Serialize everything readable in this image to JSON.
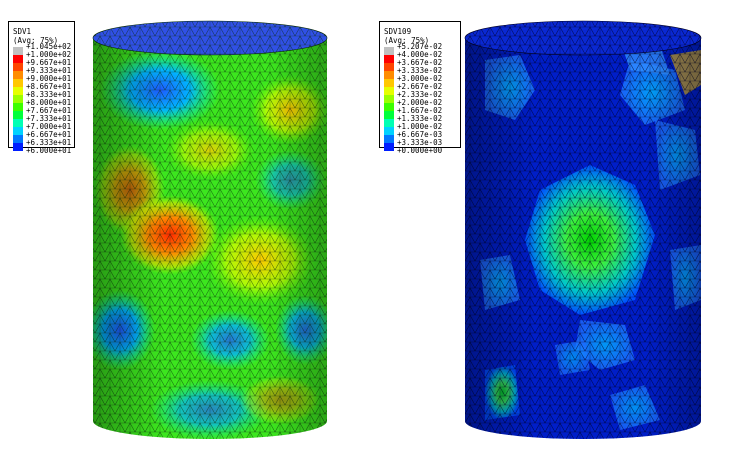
{
  "plots": [
    {
      "legend": {
        "title": "SDV1",
        "subtitle": "(Avg: 75%)",
        "values": [
          "+1.045e+02",
          "+1.000e+02",
          "+9.667e+01",
          "+9.333e+01",
          "+9.000e+01",
          "+8.667e+01",
          "+8.333e+01",
          "+8.000e+01",
          "+7.667e+01",
          "+7.333e+01",
          "+7.000e+01",
          "+6.667e+01",
          "+6.333e+01",
          "+6.000e+01"
        ],
        "colors": [
          "#c0c0c0",
          "#ff0000",
          "#ff4500",
          "#ff8c00",
          "#ffc800",
          "#e6ff00",
          "#9bff00",
          "#3cff00",
          "#00ff3c",
          "#00ffb4",
          "#00d2ff",
          "#0078ff",
          "#001eff"
        ]
      }
    },
    {
      "legend": {
        "title": "SDV109",
        "subtitle": "(Avg: 75%)",
        "values": [
          "+5.207e-02",
          "+4.000e-02",
          "+3.667e-02",
          "+3.333e-02",
          "+3.000e-02",
          "+2.667e-02",
          "+2.333e-02",
          "+2.000e-02",
          "+1.667e-02",
          "+1.333e-02",
          "+1.000e-02",
          "+6.667e-03",
          "+3.333e-03",
          "+0.000e+00"
        ],
        "colors": [
          "#c0c0c0",
          "#ff0000",
          "#ff4500",
          "#ff8c00",
          "#ffc800",
          "#e6ff00",
          "#9bff00",
          "#3cff00",
          "#00ff3c",
          "#00ffb4",
          "#00d2ff",
          "#0078ff",
          "#001eff"
        ]
      }
    }
  ]
}
